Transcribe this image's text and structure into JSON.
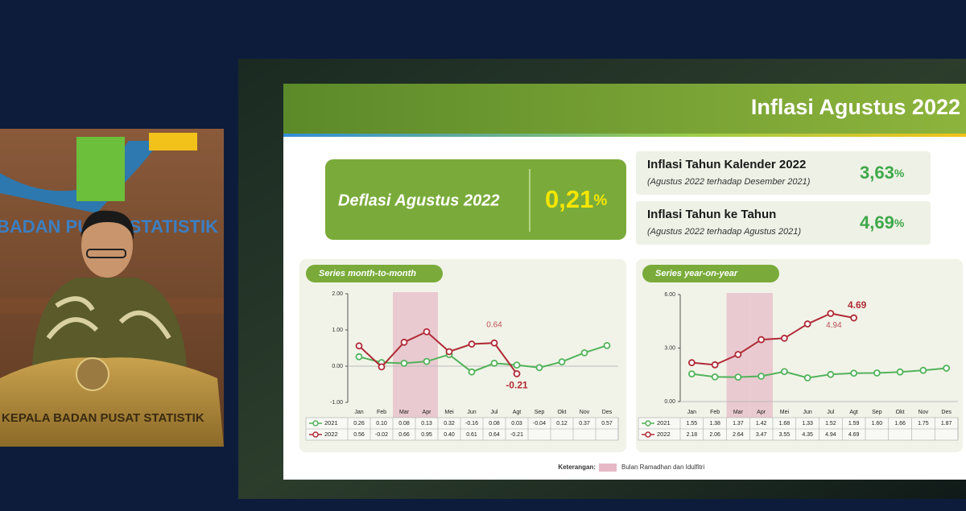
{
  "slide": {
    "title": "Inflasi Agustus 2022",
    "main": {
      "label": "Deflasi Agustus 2022",
      "value": "0,21",
      "unit": "%"
    },
    "boxes": [
      {
        "label": "Inflasi Tahun Kalender 2022",
        "sub": "(Agustus 2022 terhadap Desember 2021)",
        "value": "3,63",
        "unit": "%"
      },
      {
        "label": "Inflasi Tahun ke Tahun",
        "sub": "(Agustus 2022 terhadap Agustus 2021)",
        "value": "4,69",
        "unit": "%"
      }
    ],
    "note": {
      "label": "Keterangan:",
      "text": "Bulan Ramadhan dan Idulfitri",
      "color": "#e6b8c6"
    }
  },
  "video": {
    "wall": "BADAN PUSAT STATISTIK",
    "caption": "KEPALA BADAN PUSAT STATISTIK"
  },
  "chart_data": [
    {
      "type": "line",
      "title": "Series month-to-month",
      "categories": [
        "Jan",
        "Feb",
        "Mar",
        "Apr",
        "Mei",
        "Jun",
        "Jul",
        "Agt",
        "Sep",
        "Okt",
        "Nov",
        "Des"
      ],
      "highlight_categories": [
        2,
        3
      ],
      "ylim": [
        -1,
        2
      ],
      "yticks": [
        {
          "value": 2,
          "label": "2.00"
        },
        {
          "value": 1,
          "label": "1.00"
        },
        {
          "value": 0,
          "label": "0.00"
        },
        {
          "value": -1,
          "label": "-1.00"
        }
      ],
      "series": [
        {
          "name": "2021",
          "color": "#52b35a",
          "values": [
            0.26,
            0.1,
            0.08,
            0.13,
            0.32,
            -0.16,
            0.08,
            0.03,
            -0.04,
            0.12,
            0.37,
            0.57
          ],
          "value_labels": [
            "0.26",
            "0.10",
            "0.08",
            "0.13",
            "0.32",
            "-0.16",
            "0.08",
            "0.03",
            "-0.04",
            "0.12",
            "0.37",
            "0.57"
          ]
        },
        {
          "name": "2022",
          "color": "#b02a37",
          "values": [
            0.56,
            -0.02,
            0.66,
            0.95,
            0.4,
            0.61,
            0.64,
            -0.21,
            null,
            null,
            null,
            null
          ],
          "value_labels": [
            "0.56",
            "-0.02",
            "0.66",
            "0.95",
            "0.40",
            "0.61",
            "0.64",
            "-0.21",
            null,
            null,
            null,
            null
          ]
        }
      ],
      "annotations": [
        {
          "text": "0.64",
          "series": 1,
          "index": 6,
          "bold": false
        },
        {
          "text": "-0.21",
          "series": 1,
          "index": 7,
          "bold": true
        }
      ]
    },
    {
      "type": "line",
      "title": "Series year-on-year",
      "categories": [
        "Jan",
        "Feb",
        "Mar",
        "Apr",
        "Mei",
        "Jun",
        "Jul",
        "Agt",
        "Sep",
        "Okt",
        "Nov",
        "Des"
      ],
      "highlight_categories": [
        2,
        3
      ],
      "ylim": [
        0,
        6
      ],
      "yticks": [
        {
          "value": 6,
          "label": "6.00"
        },
        {
          "value": 3,
          "label": "3.00"
        },
        {
          "value": 0,
          "label": "0.00"
        }
      ],
      "series": [
        {
          "name": "2021",
          "color": "#52b35a",
          "values": [
            1.55,
            1.38,
            1.37,
            1.42,
            1.68,
            1.33,
            1.52,
            1.59,
            1.6,
            1.66,
            1.75,
            1.87
          ],
          "value_labels": [
            "1.55",
            "1.38",
            "1.37",
            "1.42",
            "1.68",
            "1.33",
            "1.52",
            "1.59",
            "1.60",
            "1.66",
            "1.75",
            "1.87"
          ]
        },
        {
          "name": "2022",
          "color": "#b02a37",
          "values": [
            2.18,
            2.06,
            2.64,
            3.47,
            3.55,
            4.35,
            4.94,
            4.69,
            null,
            null,
            null,
            null
          ],
          "value_labels": [
            "2.18",
            "2.06",
            "2.64",
            "3.47",
            "3.55",
            "4.35",
            "4.94",
            "4.69",
            null,
            null,
            null,
            null
          ]
        }
      ],
      "annotations": [
        {
          "text": "4.94",
          "series": 1,
          "index": 6,
          "bold": false
        },
        {
          "text": "4.69",
          "series": 1,
          "index": 7,
          "bold": true
        }
      ]
    }
  ]
}
